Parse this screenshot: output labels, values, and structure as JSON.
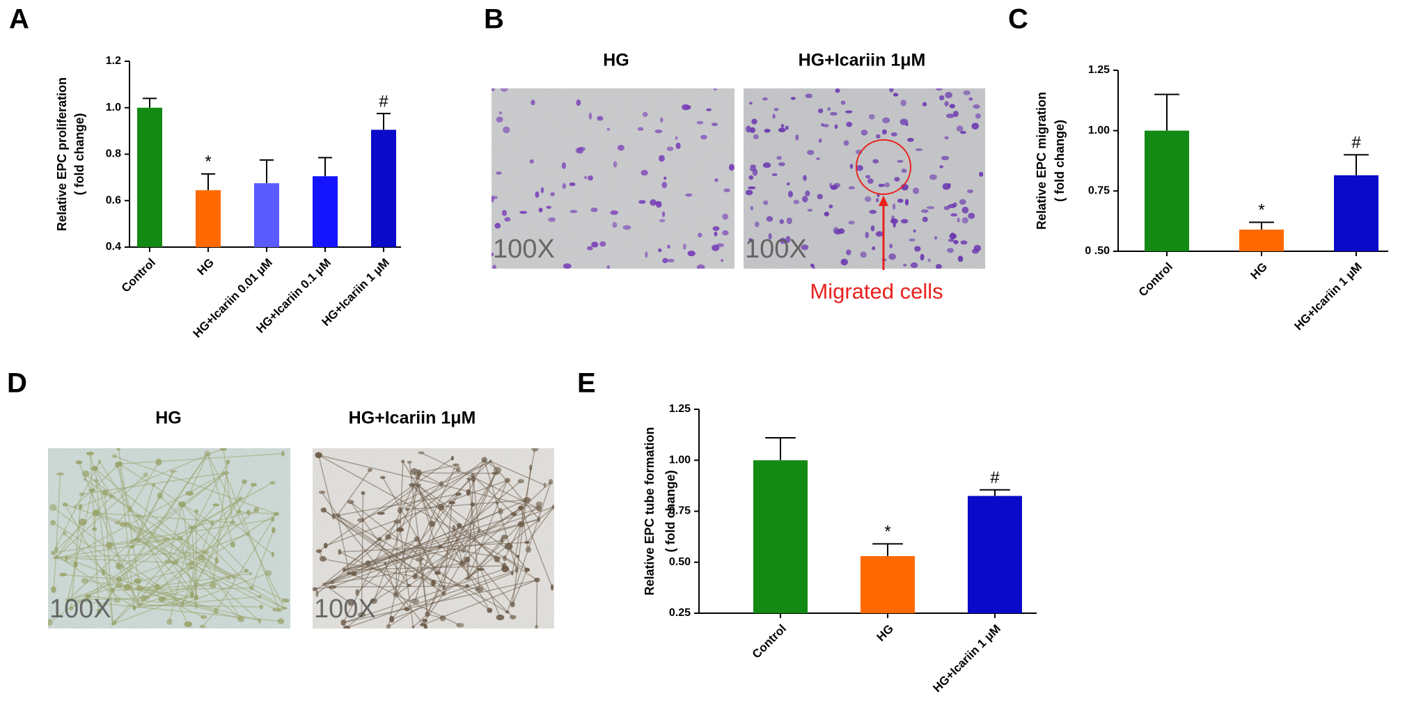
{
  "chart_data": [
    {
      "type": "bar",
      "panel": "A",
      "ylabel": [
        "Relative EPC proliferation",
        "( fold change)"
      ],
      "categories": [
        "Control",
        "HG",
        "HG+Icariin 0.01 μM",
        "HG+Icariin 0.1 μM",
        "HG+Icariin 1 μM"
      ],
      "values": [
        1.0,
        0.645,
        0.675,
        0.705,
        0.905
      ],
      "errors": [
        0.04,
        0.07,
        0.1,
        0.08,
        0.07
      ],
      "markers": [
        null,
        "*",
        null,
        null,
        "#"
      ],
      "colors": [
        "#138a13",
        "#ff6a00",
        "#5b5bff",
        "#1414ff",
        "#0a0ac8"
      ],
      "ylim": [
        0.4,
        1.2
      ],
      "yticks": [
        0.4,
        0.6,
        0.8,
        {
          "value": 1,
          "label": "1.0"
        },
        1.2
      ]
    },
    {
      "type": "bar",
      "panel": "C",
      "ylabel": [
        "Relative EPC migration",
        "( fold change)"
      ],
      "categories": [
        "Control",
        "HG",
        "HG+Icariin 1 μM"
      ],
      "values": [
        1.0,
        0.59,
        0.815
      ],
      "errors": [
        0.15,
        0.03,
        0.085
      ],
      "markers": [
        null,
        "*",
        "#"
      ],
      "colors": [
        "#138a13",
        "#ff6a00",
        "#0a0ac8"
      ],
      "ylim": [
        0.5,
        1.25
      ],
      "yticks": [
        {
          "value": 0.5,
          "label": "0 .50"
        },
        0.75,
        {
          "value": 1,
          "label": "1.00"
        },
        1.25
      ]
    },
    {
      "type": "bar",
      "panel": "E",
      "ylabel": [
        "Relative EPC tube formation",
        "( fold change)"
      ],
      "categories": [
        "Control",
        "HG",
        "HG+Icariin 1 μM"
      ],
      "values": [
        1.0,
        0.53,
        0.825
      ],
      "errors": [
        0.11,
        0.06,
        0.03
      ],
      "markers": [
        null,
        "*",
        "#"
      ],
      "colors": [
        "#138a13",
        "#ff6a00",
        "#0a0ac8"
      ],
      "ylim": [
        0.25,
        1.25
      ],
      "yticks": [
        0.25,
        {
          "value": 0.5,
          "label": "0.50"
        },
        0.75,
        {
          "value": 1,
          "label": "1.00"
        },
        1.25
      ]
    }
  ],
  "images": [
    {
      "panel": "B",
      "titles": [
        "HG",
        "HG+Icariin 1μM"
      ],
      "magnification": "100X",
      "annotation": "Migrated cells"
    },
    {
      "panel": "D",
      "titles": [
        "HG",
        "HG+Icariin 1μM"
      ],
      "magnification": "100X"
    }
  ]
}
